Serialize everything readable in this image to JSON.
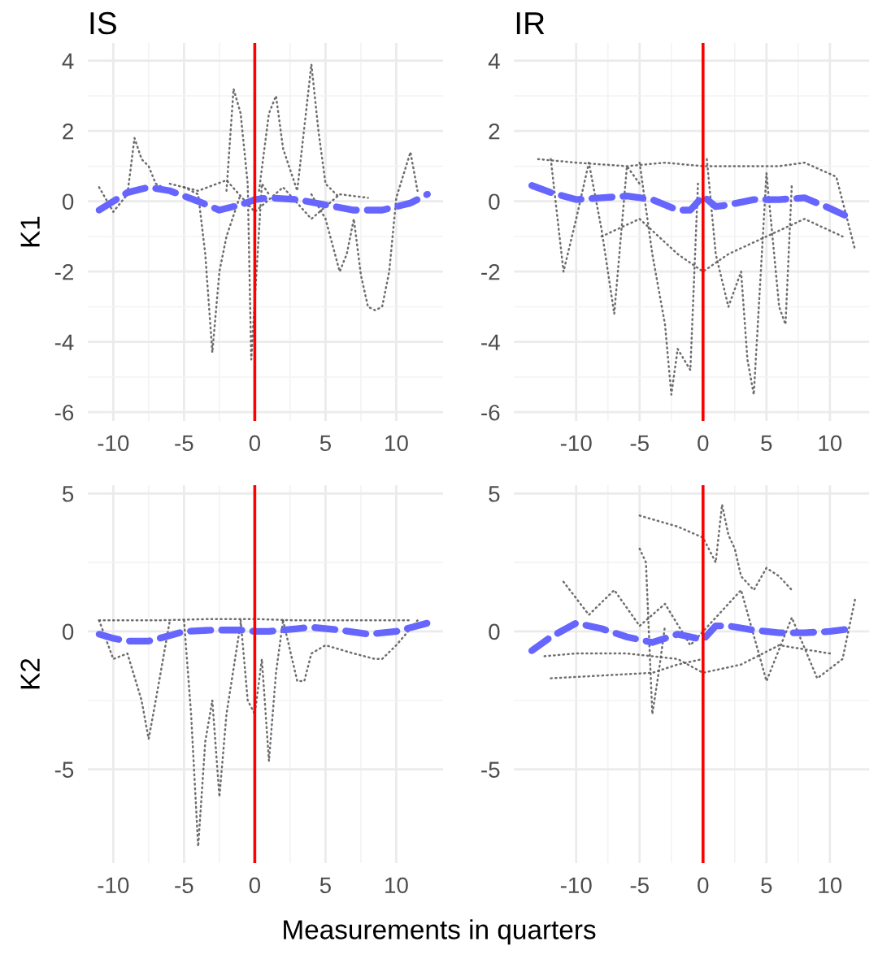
{
  "chart_data": [
    {
      "type": "line",
      "title": "IS",
      "ylabel": "K1",
      "xlim": [
        -11.8,
        13.3
      ],
      "ylim": [
        -6.25,
        4.5
      ],
      "xticks": [
        -10,
        -5,
        0,
        5,
        10
      ],
      "yticks": [
        -6,
        -4,
        -2,
        0,
        2,
        4
      ],
      "grid": true,
      "ref_lines": [
        {
          "axis": "x",
          "value": 0,
          "color": "#ff0000"
        }
      ],
      "series": [
        {
          "color": "#555555",
          "line_style": "dotted",
          "x": [
            -11,
            -10,
            -9,
            -8.5,
            -8,
            -7.5,
            -7,
            -6
          ],
          "values": [
            0.4,
            -0.3,
            0.2,
            1.8,
            1.2,
            1.0,
            0.5,
            0.3
          ]
        },
        {
          "color": "#555555",
          "line_style": "dotted",
          "x": [
            -5,
            -4,
            -3.5,
            -3,
            -2.5,
            -2,
            -1
          ],
          "values": [
            0.4,
            0.2,
            -1.5,
            -4.3,
            -2,
            -1.0,
            0.2
          ]
        },
        {
          "color": "#555555",
          "line_style": "dotted",
          "x": [
            -2,
            -1.5,
            -1,
            -0.5,
            -0.25,
            0.5,
            1
          ],
          "values": [
            0.3,
            3.2,
            2.5,
            0.5,
            -4.5,
            0.5,
            0.2
          ]
        },
        {
          "color": "#555555",
          "line_style": "dotted",
          "x": [
            0.3,
            1,
            1.5,
            2,
            3,
            4,
            4.5,
            5,
            6
          ],
          "values": [
            0.3,
            2.5,
            3,
            1.5,
            0.3,
            3.9,
            2.0,
            0.5,
            0.1
          ]
        },
        {
          "color": "#555555",
          "line_style": "dotted",
          "x": [
            4,
            5,
            6,
            6.5,
            7,
            7.5,
            8,
            8.5,
            9,
            9.5,
            10,
            11,
            11.5
          ],
          "values": [
            0.2,
            -0.5,
            -2.0,
            -1.5,
            -0.5,
            -2.1,
            -3.0,
            -3.1,
            -3.0,
            -2.0,
            0.1,
            1.4,
            0.3
          ]
        },
        {
          "color": "#555555",
          "line_style": "dotted",
          "x": [
            -6,
            -4,
            -2,
            0,
            2,
            4,
            6,
            8
          ],
          "values": [
            0.5,
            0.3,
            0.6,
            -0.3,
            0.4,
            -0.5,
            0.2,
            0.1
          ]
        },
        {
          "color": "#6666ff",
          "line_style": "dashed",
          "x": [
            -11,
            -10,
            -9,
            -7.5,
            -6,
            -4,
            -2.5,
            -1,
            0,
            1,
            3,
            5,
            7,
            9,
            11,
            12.2
          ],
          "values": [
            -0.25,
            0,
            0.25,
            0.4,
            0.3,
            0,
            -0.25,
            -0.1,
            0.05,
            0.1,
            0.05,
            -0.1,
            -0.25,
            -0.25,
            -0.05,
            0.2
          ]
        }
      ]
    },
    {
      "type": "line",
      "title": "IR",
      "xlim": [
        -14.9,
        13.1
      ],
      "ylim": [
        -6.25,
        4.5
      ],
      "xticks": [
        -10,
        -5,
        0,
        5,
        10
      ],
      "yticks": [
        -6,
        -4,
        -2,
        0,
        2,
        4
      ],
      "grid": true,
      "ref_lines": [
        {
          "axis": "x",
          "value": 0,
          "color": "#ff0000"
        }
      ],
      "series": [
        {
          "color": "#555555",
          "line_style": "dotted",
          "x": [
            -12,
            -11,
            -10,
            -9,
            -8,
            -7,
            -6,
            -5
          ],
          "values": [
            1.2,
            -2,
            -0.5,
            1.1,
            -0.8,
            -3.2,
            1.0,
            0.5
          ]
        },
        {
          "color": "#555555",
          "line_style": "dotted",
          "x": [
            -5,
            -4,
            -3,
            -2.5,
            -2,
            -1,
            -0.4
          ],
          "values": [
            1.1,
            -1.5,
            -3.5,
            -5.5,
            -4.2,
            -4.8,
            0.5
          ]
        },
        {
          "color": "#555555",
          "line_style": "dotted",
          "x": [
            0.3,
            1,
            2,
            3,
            3.5,
            4,
            5,
            6,
            6.5,
            7
          ],
          "values": [
            1.2,
            -1.5,
            -3.0,
            -2.0,
            -4.5,
            -5.5,
            0.8,
            -3.0,
            -3.5,
            0.5
          ]
        },
        {
          "color": "#555555",
          "line_style": "dotted",
          "x": [
            -13,
            -10,
            -6,
            -3,
            0,
            3,
            6,
            8,
            10.5,
            12
          ],
          "values": [
            1.2,
            1.1,
            1.0,
            1.1,
            1.0,
            1.0,
            1.0,
            1.1,
            0.7,
            -1.4
          ]
        },
        {
          "color": "#555555",
          "line_style": "dotted",
          "x": [
            -8,
            -5,
            -2,
            0,
            2,
            5,
            8,
            11
          ],
          "values": [
            -1.0,
            -0.5,
            -1.5,
            -2.0,
            -1.5,
            -1.0,
            -0.5,
            -1.0
          ]
        },
        {
          "color": "#6666ff",
          "line_style": "dashed",
          "x": [
            -13.5,
            -12,
            -10,
            -8,
            -6,
            -4,
            -2,
            -1,
            0,
            1,
            2,
            4,
            6,
            8,
            10,
            11.8
          ],
          "values": [
            0.45,
            0.25,
            0.05,
            0.1,
            0.15,
            0.05,
            -0.25,
            -0.25,
            0.15,
            -0.15,
            -0.1,
            0.05,
            0.05,
            0.1,
            -0.2,
            -0.5
          ]
        }
      ]
    },
    {
      "type": "line",
      "ylabel": "K2",
      "xlabel": "Measurements in quarters",
      "xlim": [
        -11.8,
        13.3
      ],
      "ylim": [
        -8.4,
        5.3
      ],
      "xticks": [
        -10,
        -5,
        0,
        5,
        10
      ],
      "yticks": [
        -5,
        0,
        5
      ],
      "grid": true,
      "ref_lines": [
        {
          "axis": "x",
          "value": 0,
          "color": "#ff0000"
        }
      ],
      "series": [
        {
          "color": "#555555",
          "line_style": "dotted",
          "x": [
            -11,
            -10,
            -9,
            -8,
            -7.5,
            -7,
            -6
          ],
          "values": [
            0.4,
            -1,
            -0.8,
            -2.5,
            -3.9,
            -2.5,
            0.4
          ]
        },
        {
          "color": "#555555",
          "line_style": "dotted",
          "x": [
            -5,
            -4.5,
            -4,
            -3.5,
            -3,
            -2.5,
            -2,
            -1
          ],
          "values": [
            0.4,
            -3,
            -7.8,
            -4,
            -2.5,
            -6,
            -3,
            0.3
          ]
        },
        {
          "color": "#555555",
          "line_style": "dotted",
          "x": [
            -1,
            -0.5,
            0,
            0.5,
            1,
            1.5,
            2
          ],
          "values": [
            0.4,
            -2.5,
            -3,
            -1,
            -4.7,
            -1.5,
            0.4
          ]
        },
        {
          "color": "#555555",
          "line_style": "dotted",
          "x": [
            2,
            3,
            3.5,
            4,
            5,
            7,
            8.5,
            9,
            10,
            11.5
          ],
          "values": [
            0.4,
            -1.8,
            -1.8,
            -0.8,
            -0.5,
            -0.8,
            -1.0,
            -1.0,
            -0.5,
            0.4
          ]
        },
        {
          "color": "#555555",
          "line_style": "dotted",
          "x": [
            -11,
            -7,
            -3,
            0,
            3,
            7,
            11
          ],
          "values": [
            0.4,
            0.4,
            0.45,
            0.45,
            0.4,
            0.4,
            0.4
          ]
        },
        {
          "color": "#6666ff",
          "line_style": "dashed",
          "x": [
            -11,
            -10,
            -9,
            -7.5,
            -6,
            -5,
            -3,
            -1,
            0,
            1,
            3,
            4,
            6,
            8,
            10,
            12.2
          ],
          "values": [
            -0.1,
            -0.25,
            -0.35,
            -0.35,
            -0.15,
            0,
            0.05,
            0.05,
            0,
            0,
            0.1,
            0.15,
            0.05,
            -0.1,
            0,
            0.3
          ]
        }
      ]
    },
    {
      "type": "line",
      "xlim": [
        -14.9,
        13.1
      ],
      "ylim": [
        -8.4,
        5.3
      ],
      "xticks": [
        -10,
        -5,
        0,
        5,
        10
      ],
      "yticks": [
        -5,
        0,
        5
      ],
      "grid": true,
      "ref_lines": [
        {
          "axis": "x",
          "value": 0,
          "color": "#ff0000"
        }
      ],
      "series": [
        {
          "color": "#555555",
          "line_style": "dotted",
          "x": [
            -12,
            -8,
            -4,
            -2,
            0
          ],
          "values": [
            -1.7,
            -1.6,
            -1.5,
            -1.2,
            -1.0
          ]
        },
        {
          "color": "#555555",
          "line_style": "dotted",
          "x": [
            -5,
            -4.5,
            -4,
            -3.5,
            -3
          ],
          "values": [
            3,
            2.5,
            -3,
            -1.5,
            0.2
          ]
        },
        {
          "color": "#555555",
          "line_style": "dotted",
          "x": [
            -5,
            -2,
            0,
            1,
            1.5,
            2,
            2.5,
            3,
            4,
            5,
            6,
            7
          ],
          "values": [
            4.2,
            3.8,
            3.4,
            2.5,
            4.6,
            3.5,
            3.0,
            2.0,
            1.5,
            2.3,
            2.0,
            1.5
          ]
        },
        {
          "color": "#555555",
          "line_style": "dotted",
          "x": [
            -11,
            -9,
            -7,
            -5,
            -3,
            -1,
            1,
            3,
            5,
            7,
            9,
            11,
            12
          ],
          "values": [
            1.8,
            0.6,
            1.5,
            0.2,
            1.0,
            -0.5,
            0.5,
            1.5,
            -1.8,
            0.5,
            -1.7,
            -1.0,
            1.2
          ]
        },
        {
          "color": "#555555",
          "line_style": "dotted",
          "x": [
            -12.5,
            -10,
            -6,
            -2,
            0,
            3,
            6,
            10
          ],
          "values": [
            -0.9,
            -0.8,
            -0.8,
            -1.0,
            -1.5,
            -1.2,
            -0.5,
            -0.8
          ]
        },
        {
          "color": "#6666ff",
          "line_style": "dashed",
          "x": [
            -13.5,
            -12,
            -10,
            -8,
            -6,
            -4,
            -2,
            0,
            1,
            2,
            4,
            6,
            8,
            10,
            11.8
          ],
          "values": [
            -0.7,
            -0.2,
            0.3,
            0.1,
            -0.2,
            -0.4,
            -0.1,
            -0.3,
            0.2,
            0.2,
            0.05,
            -0.05,
            -0.05,
            0,
            0.1
          ]
        }
      ]
    }
  ]
}
